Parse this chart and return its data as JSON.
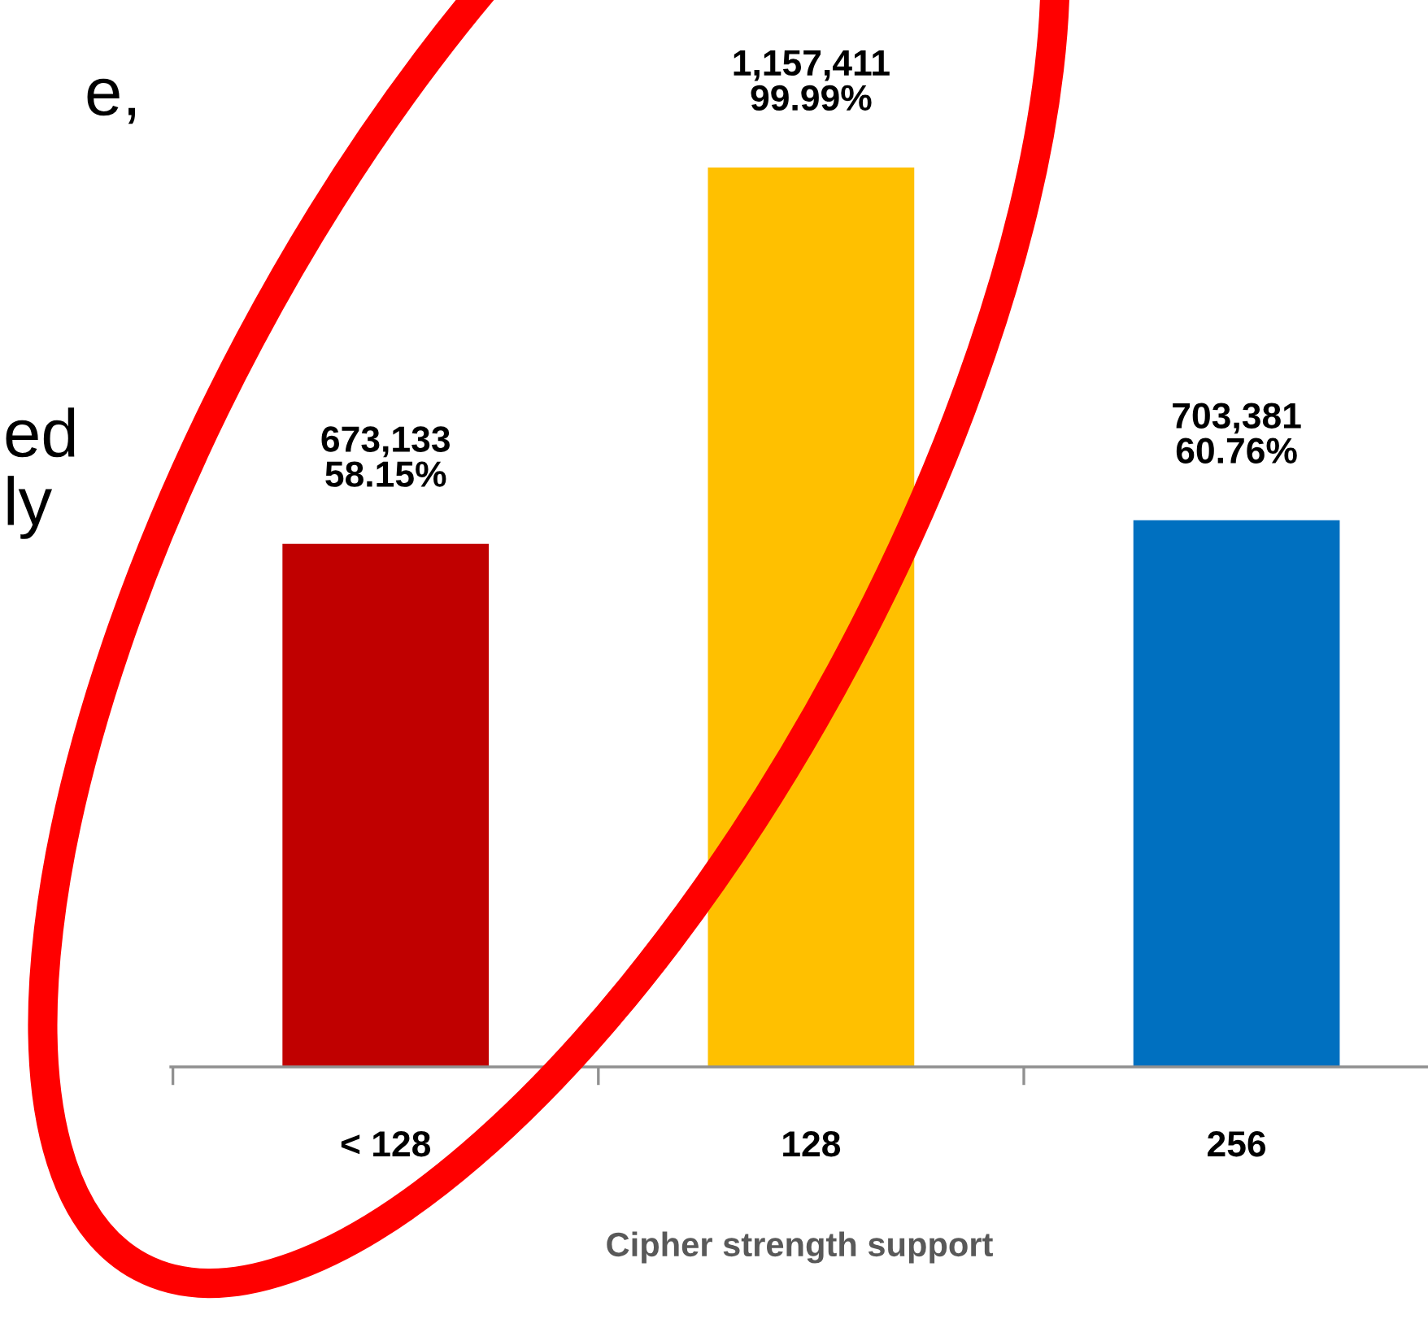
{
  "chart_data": {
    "type": "bar",
    "xlabel": "Cipher strength support",
    "categories": [
      "< 128",
      "128",
      "256"
    ],
    "values": [
      673133,
      1157411,
      703381
    ],
    "colors": [
      "#c00000",
      "#ffc000",
      "#0070c0"
    ],
    "value_labels": [
      "673,133\n58.15%",
      "1,157,411\n99.99%",
      "703,381\n60.76%"
    ],
    "tick_labels": "x",
    "annotations": [
      "e,",
      "ed",
      "ly"
    ]
  }
}
